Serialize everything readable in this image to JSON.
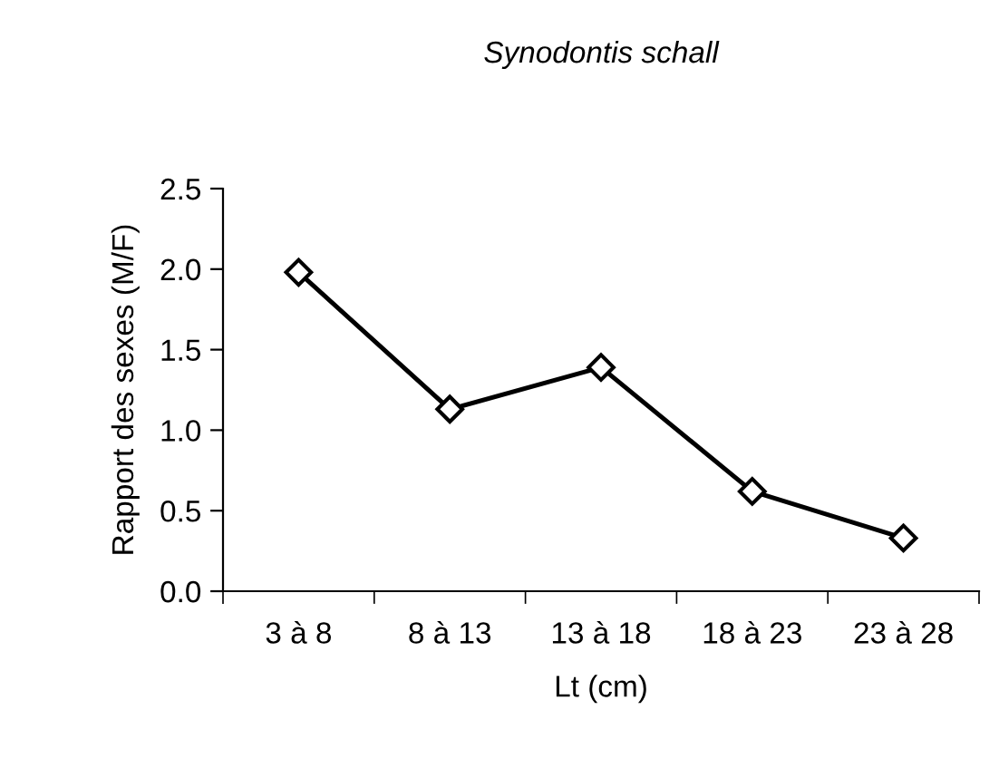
{
  "chart_data": {
    "type": "line",
    "title": "Synodontis schall",
    "xlabel": "Lt (cm)",
    "ylabel": "Rapport des sexes (M/F)",
    "categories": [
      "3 à 8",
      "8 à 13",
      "13 à 18",
      "18 à 23",
      "23 à 28"
    ],
    "series": [
      {
        "color": "#000000",
        "values": [
          1.98,
          1.13,
          1.39,
          0.62,
          0.33
        ]
      }
    ],
    "ylim": [
      0,
      2.5
    ],
    "yticks": [
      {
        "value": 0,
        "label": "0.0"
      },
      0.5,
      {
        "value": 1,
        "label": "1.0"
      },
      1.5,
      {
        "value": 2,
        "label": "2.0"
      },
      2.5
    ],
    "grid": false,
    "legend": false,
    "marker": "diamond",
    "line_style": "solid"
  }
}
